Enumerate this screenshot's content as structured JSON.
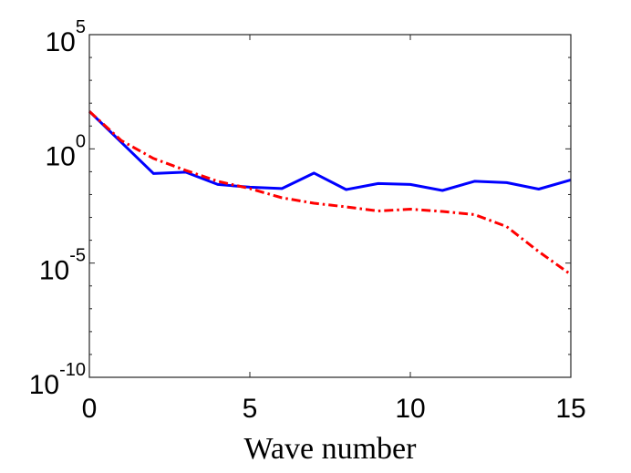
{
  "chart_data": {
    "type": "line",
    "title": "",
    "xlabel": "Wave number",
    "ylabel": "",
    "xlim": [
      0,
      15
    ],
    "ylim_log10": [
      -10,
      5
    ],
    "y_scale": "log",
    "x_ticks": [
      0,
      5,
      10,
      15
    ],
    "y_ticks": [
      {
        "base": "10",
        "exp": "5",
        "value": 5
      },
      {
        "base": "10",
        "exp": "0",
        "value": 0
      },
      {
        "base": "10",
        "exp": "-5",
        "value": -5
      },
      {
        "base": "10",
        "exp": "-10",
        "value": -10
      }
    ],
    "grid": false,
    "box": true,
    "series": [
      {
        "name": "solid",
        "color": "#0000ff",
        "style": "solid",
        "x": [
          0,
          1,
          2,
          3,
          4,
          5,
          6,
          7,
          8,
          9,
          10,
          11,
          12,
          13,
          14,
          15
        ],
        "log10_y": [
          1.64,
          0.28,
          -1.08,
          -1.02,
          -1.56,
          -1.68,
          -1.74,
          -1.06,
          -1.78,
          -1.52,
          -1.56,
          -1.82,
          -1.42,
          -1.48,
          -1.76,
          -1.36
        ]
      },
      {
        "name": "dash-dot",
        "color": "#ff0000",
        "style": "dashdot",
        "x": [
          0,
          1,
          2,
          3,
          4,
          5,
          6,
          7,
          8,
          9,
          10,
          11,
          12,
          13,
          14,
          15
        ],
        "log10_y": [
          1.64,
          0.36,
          -0.42,
          -0.94,
          -1.42,
          -1.74,
          -2.14,
          -2.38,
          -2.54,
          -2.72,
          -2.64,
          -2.74,
          -2.88,
          -3.4,
          -4.5,
          -5.5
        ]
      }
    ]
  }
}
